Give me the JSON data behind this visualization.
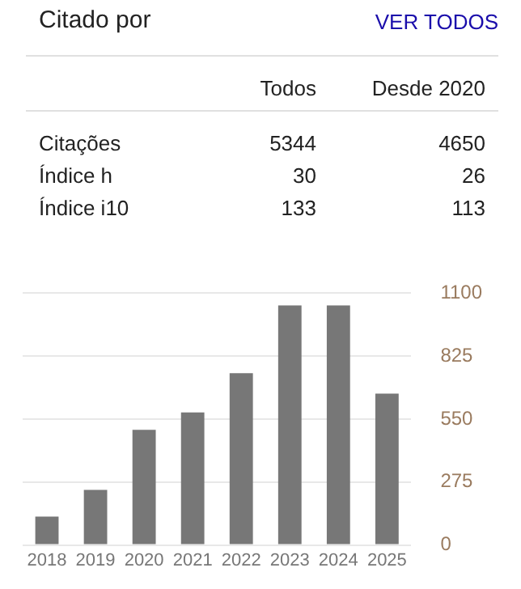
{
  "chart_data": [
    {
      "type": "other",
      "title": "Citado por",
      "annotations": [
        "VER TODOS"
      ],
      "categories": [
        "Citações",
        "Índice h",
        "Índice i10"
      ],
      "data_labels": true,
      "series": [
        {
          "name": "Todos",
          "values": [
            5344,
            30,
            133
          ]
        },
        {
          "name": "Desde 2020",
          "values": [
            4650,
            26,
            113
          ]
        }
      ]
    },
    {
      "type": "bar",
      "categories": [
        "2018",
        "2019",
        "2020",
        "2021",
        "2022",
        "2023",
        "2024",
        "2025"
      ],
      "values": [
        124,
        241,
        503,
        579,
        751,
        1047,
        1047,
        661
      ],
      "color": "#777777",
      "ylim": [
        0,
        1100
      ],
      "yticks": [
        0,
        275,
        550,
        825,
        1100
      ],
      "grid": "y",
      "legend": false
    }
  ]
}
